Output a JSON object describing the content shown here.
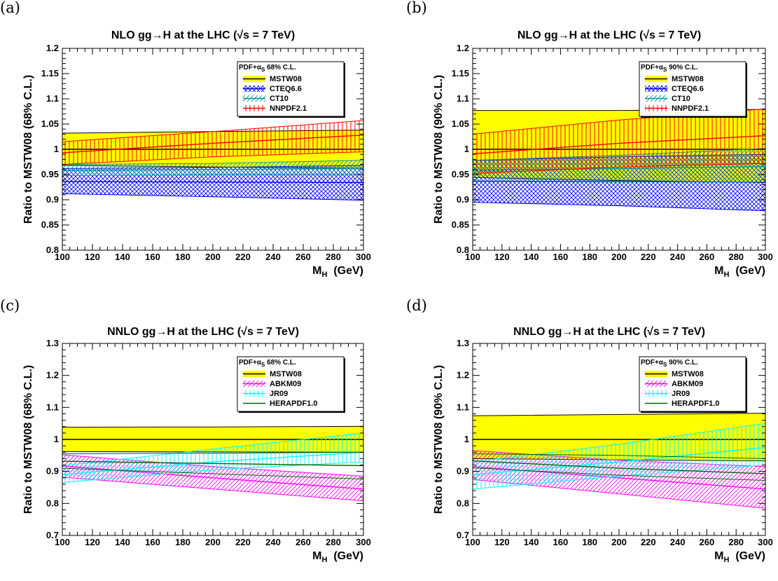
{
  "chart_data": [
    {
      "panel_label": "(a)",
      "type": "area",
      "title": "NLO gg→H at the LHC (√s = 7 TeV)",
      "xlabel": "M_H (GeV)",
      "ylabel": "Ratio to MSTW08 (68% C.L.)",
      "xlim": [
        100,
        300
      ],
      "ylim": [
        0.8,
        1.2
      ],
      "xticks": [
        100,
        120,
        140,
        160,
        180,
        200,
        220,
        240,
        260,
        280,
        300
      ],
      "yticks": [
        0.8,
        0.85,
        0.9,
        0.95,
        1,
        1.05,
        1.1,
        1.15,
        1.2
      ],
      "legend_header": "PDF+αS 68% C.L.",
      "legend_position": "top-right",
      "x": [
        100,
        200,
        300
      ],
      "series": [
        {
          "name": "MSTW08",
          "color": "#ffff00",
          "edge": "#000000",
          "style": "solid",
          "central": [
            1.0,
            1.0,
            1.0
          ],
          "upper": [
            1.032,
            1.035,
            1.038
          ],
          "lower": [
            0.968,
            0.965,
            0.962
          ]
        },
        {
          "name": "CTEQ6.6",
          "color": "#0000ff",
          "style": "cross",
          "central": [
            0.936,
            0.935,
            0.934
          ],
          "upper": [
            0.962,
            0.964,
            0.968
          ],
          "lower": [
            0.912,
            0.906,
            0.899
          ]
        },
        {
          "name": "CT10",
          "color": "#009999",
          "style": "diag",
          "central": [
            0.958,
            0.96,
            0.962
          ],
          "upper": [
            0.97,
            0.972,
            0.978
          ],
          "lower": [
            0.948,
            0.95,
            0.95
          ]
        },
        {
          "name": "NNPDF2.1",
          "color": "#ff0000",
          "style": "vertical",
          "central": [
            0.993,
            1.012,
            1.028
          ],
          "upper": [
            1.015,
            1.035,
            1.057
          ],
          "lower": [
            0.97,
            0.985,
            0.995
          ]
        }
      ]
    },
    {
      "panel_label": "(b)",
      "type": "area",
      "title": "NLO gg→H at the LHC (√s = 7 TeV)",
      "xlabel": "M_H (GeV)",
      "ylabel": "Ratio to MSTW08 (90% C.L.)",
      "xlim": [
        100,
        300
      ],
      "ylim": [
        0.8,
        1.2
      ],
      "xticks": [
        100,
        120,
        140,
        160,
        180,
        200,
        220,
        240,
        260,
        280,
        300
      ],
      "yticks": [
        0.8,
        0.85,
        0.9,
        0.95,
        1,
        1.05,
        1.1,
        1.15,
        1.2
      ],
      "legend_header": "PDF+αS 90% C.L.",
      "legend_position": "top-right",
      "x": [
        100,
        200,
        300
      ],
      "series": [
        {
          "name": "MSTW08",
          "color": "#ffff00",
          "edge": "#000000",
          "style": "solid",
          "central": [
            1.0,
            1.0,
            1.0
          ],
          "upper": [
            1.077,
            1.077,
            1.079
          ],
          "lower": [
            0.944,
            0.938,
            0.934
          ]
        },
        {
          "name": "CTEQ6.6",
          "color": "#0000ff",
          "style": "cross",
          "central": [
            0.937,
            0.936,
            0.935
          ],
          "upper": [
            0.978,
            0.985,
            0.99
          ],
          "lower": [
            0.895,
            0.888,
            0.878
          ]
        },
        {
          "name": "CT10",
          "color": "#009999",
          "style": "diag",
          "central": [
            0.958,
            0.962,
            0.966
          ],
          "upper": [
            0.978,
            0.988,
            1.002
          ],
          "lower": [
            0.936,
            0.935,
            0.935
          ]
        },
        {
          "name": "NNPDF2.1",
          "color": "#ff0000",
          "style": "vertical",
          "central": [
            0.991,
            1.012,
            1.027
          ],
          "upper": [
            1.03,
            1.058,
            1.08
          ],
          "lower": [
            0.952,
            0.965,
            0.972
          ]
        }
      ]
    },
    {
      "panel_label": "(c)",
      "type": "area",
      "title": "NNLO gg→H at the LHC (√s = 7 TeV)",
      "xlabel": "M_H (GeV)",
      "ylabel": "Ratio to MSTW08 (68% C.L.)",
      "xlim": [
        100,
        300
      ],
      "ylim": [
        0.7,
        1.3
      ],
      "xticks": [
        100,
        120,
        140,
        160,
        180,
        200,
        220,
        240,
        260,
        280,
        300
      ],
      "yticks": [
        0.7,
        0.8,
        0.9,
        1,
        1.1,
        1.2,
        1.3
      ],
      "legend_header": "PDF+αS 68% C.L.",
      "legend_position": "top-right",
      "x": [
        100,
        200,
        300
      ],
      "series": [
        {
          "name": "MSTW08",
          "color": "#ffff00",
          "edge": "#000000",
          "style": "solid",
          "central": [
            1.0,
            1.0,
            1.0
          ],
          "upper": [
            1.038,
            1.039,
            1.041
          ],
          "lower": [
            0.962,
            0.961,
            0.96
          ]
        },
        {
          "name": "ABKM09",
          "color": "#ff00ff",
          "style": "diag",
          "central": [
            0.917,
            0.88,
            0.845
          ],
          "upper": [
            0.952,
            0.915,
            0.885
          ],
          "lower": [
            0.882,
            0.845,
            0.808
          ]
        },
        {
          "name": "JR09",
          "color": "#00ffff",
          "style": "vertical",
          "central": [
            0.89,
            0.93,
            0.96
          ],
          "upper": [
            0.918,
            0.97,
            1.02
          ],
          "lower": [
            0.865,
            0.905,
            0.93
          ]
        },
        {
          "name": "HERAPDF1.0",
          "color": "#006600",
          "style": "line",
          "central": [
            0.932,
            0.925,
            0.918
          ],
          "upper": [
            0.955,
            0.957,
            0.96
          ],
          "lower": [
            0.91,
            0.893,
            0.876
          ]
        }
      ]
    },
    {
      "panel_label": "(d)",
      "type": "area",
      "title": "NNLO gg→H at the LHC (√s = 7 TeV)",
      "xlabel": "M_H (GeV)",
      "ylabel": "Ratio to MSTW08 (90% C.L.)",
      "xlim": [
        100,
        300
      ],
      "ylim": [
        0.7,
        1.3
      ],
      "xticks": [
        100,
        120,
        140,
        160,
        180,
        200,
        220,
        240,
        260,
        280,
        300
      ],
      "yticks": [
        0.7,
        0.8,
        0.9,
        1,
        1.1,
        1.2,
        1.3
      ],
      "legend_header": "PDF+αS 90% C.L.",
      "legend_position": "top-right",
      "x": [
        100,
        200,
        300
      ],
      "series": [
        {
          "name": "MSTW08",
          "color": "#ffff00",
          "edge": "#000000",
          "style": "solid",
          "central": [
            1.0,
            1.0,
            1.0
          ],
          "upper": [
            1.074,
            1.078,
            1.082
          ],
          "lower": [
            0.94,
            0.936,
            0.933
          ]
        },
        {
          "name": "ABKM09",
          "color": "#ff00ff",
          "style": "diag",
          "central": [
            0.915,
            0.88,
            0.845
          ],
          "upper": [
            0.965,
            0.935,
            0.915
          ],
          "lower": [
            0.875,
            0.83,
            0.785
          ]
        },
        {
          "name": "JR09",
          "color": "#00ffff",
          "style": "vertical",
          "central": [
            0.89,
            0.93,
            0.975
          ],
          "upper": [
            0.93,
            0.985,
            1.05
          ],
          "lower": [
            0.845,
            0.885,
            0.92
          ]
        },
        {
          "name": "HERAPDF1.0",
          "color": "#006600",
          "style": "line",
          "central": [
            0.933,
            0.91,
            0.893
          ],
          "upper": [
            0.955,
            0.95,
            0.94
          ],
          "lower": [
            0.911,
            0.888,
            0.872
          ]
        }
      ]
    }
  ]
}
